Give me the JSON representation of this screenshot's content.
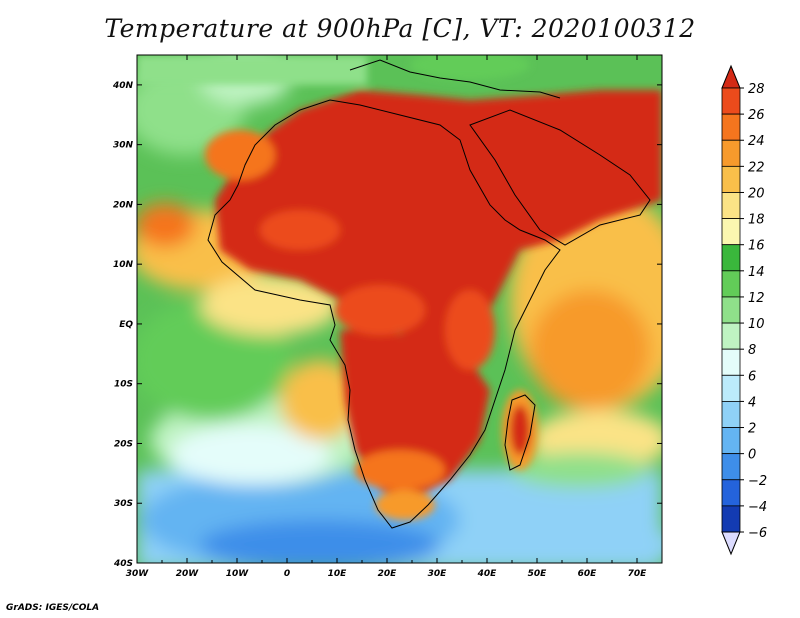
{
  "title": "Temperature at 900hPa [C], VT: 2020100312",
  "footer": "GrADS: IGES/COLA",
  "map": {
    "region": "Africa and surrounding oceans",
    "lon_range": [
      -30,
      75
    ],
    "lat_range": [
      -40,
      45
    ],
    "lon_ticks": [
      "30W",
      "20W",
      "10W",
      "0",
      "10E",
      "20E",
      "30E",
      "40E",
      "50E",
      "60E",
      "70E"
    ],
    "lat_ticks": [
      "40N",
      "30N",
      "20N",
      "10N",
      "EQ",
      "10S",
      "20S",
      "30S",
      "40S"
    ]
  },
  "colorbar": {
    "labels": [
      "28",
      "26",
      "24",
      "22",
      "20",
      "18",
      "16",
      "14",
      "12",
      "10",
      "8",
      "6",
      "4",
      "2",
      "0",
      "−2",
      "−4",
      "−6"
    ],
    "colors": [
      "#d42a16",
      "#ec4b1c",
      "#f5751e",
      "#f79a2c",
      "#f9bf4a",
      "#fbe386",
      "#fbf7b0",
      "#3ab73c",
      "#62cc58",
      "#8fe08a",
      "#bff3c2",
      "#e4fdfa",
      "#bcebfb",
      "#8fd1f7",
      "#64b4f2",
      "#3e8ee9",
      "#2463dc",
      "#133bb2",
      "#0c1a6e"
    ]
  }
}
